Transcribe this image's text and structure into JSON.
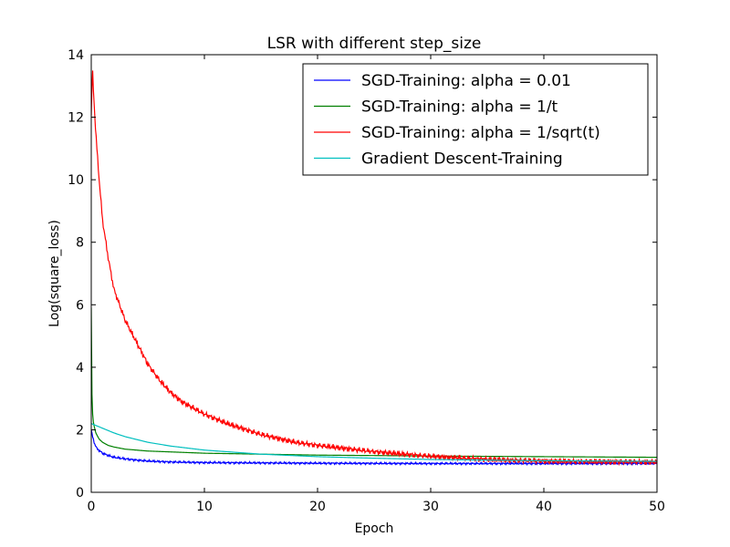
{
  "chart_data": {
    "type": "line",
    "title": "LSR with different step_size",
    "xlabel": "Epoch",
    "ylabel": "Log(square_loss)",
    "xlim": [
      0,
      50
    ],
    "ylim": [
      0,
      14
    ],
    "xticks": [
      "0",
      "10",
      "20",
      "30",
      "40",
      "50"
    ],
    "yticks": [
      "0",
      "2",
      "4",
      "6",
      "8",
      "10",
      "12",
      "14"
    ],
    "grid": false,
    "legend_position": "top-right",
    "series": [
      {
        "name": "SGD-Training: alpha = 0.01",
        "color": "#0000ff",
        "noise": 0.04,
        "x": [
          0,
          0.1,
          0.3,
          0.5,
          1,
          1.5,
          2,
          3,
          4,
          5,
          7,
          10,
          15,
          20,
          30,
          40,
          50
        ],
        "y": [
          2.0,
          1.8,
          1.55,
          1.4,
          1.25,
          1.18,
          1.12,
          1.07,
          1.03,
          1.0,
          0.97,
          0.95,
          0.94,
          0.93,
          0.92,
          0.92,
          0.92
        ]
      },
      {
        "name": "SGD-Training: alpha = 1/t",
        "color": "#008000",
        "noise": 0.0,
        "x": [
          0,
          0.05,
          0.1,
          0.2,
          0.4,
          0.7,
          1,
          1.5,
          2,
          3,
          5,
          10,
          20,
          30,
          40,
          50
        ],
        "y": [
          5.9,
          3.3,
          2.6,
          2.2,
          1.9,
          1.7,
          1.6,
          1.5,
          1.45,
          1.38,
          1.32,
          1.25,
          1.19,
          1.16,
          1.14,
          1.12
        ]
      },
      {
        "name": "SGD-Training: alpha = 1/sqrt(t)",
        "color": "#ff0000",
        "noise": 0.1,
        "x": [
          0,
          0.1,
          0.2,
          0.4,
          0.7,
          1,
          1.5,
          2,
          3,
          4,
          5,
          6,
          7,
          8,
          10,
          12,
          15,
          18,
          20,
          25,
          30,
          35,
          40,
          45,
          50
        ],
        "y": [
          12.0,
          13.6,
          12.8,
          11.5,
          10.0,
          8.7,
          7.5,
          6.5,
          5.5,
          4.8,
          4.1,
          3.6,
          3.2,
          2.9,
          2.5,
          2.2,
          1.85,
          1.6,
          1.5,
          1.3,
          1.15,
          1.05,
          1.0,
          0.98,
          0.97
        ]
      },
      {
        "name": "Gradient Descent-Training",
        "color": "#00bfbf",
        "noise": 0.0,
        "x": [
          0,
          1,
          2,
          3,
          5,
          7,
          10,
          15,
          20,
          25,
          30,
          35,
          40,
          45,
          50
        ],
        "y": [
          2.2,
          2.05,
          1.9,
          1.78,
          1.6,
          1.48,
          1.35,
          1.22,
          1.14,
          1.09,
          1.05,
          1.03,
          1.01,
          1.0,
          0.99
        ]
      }
    ]
  }
}
